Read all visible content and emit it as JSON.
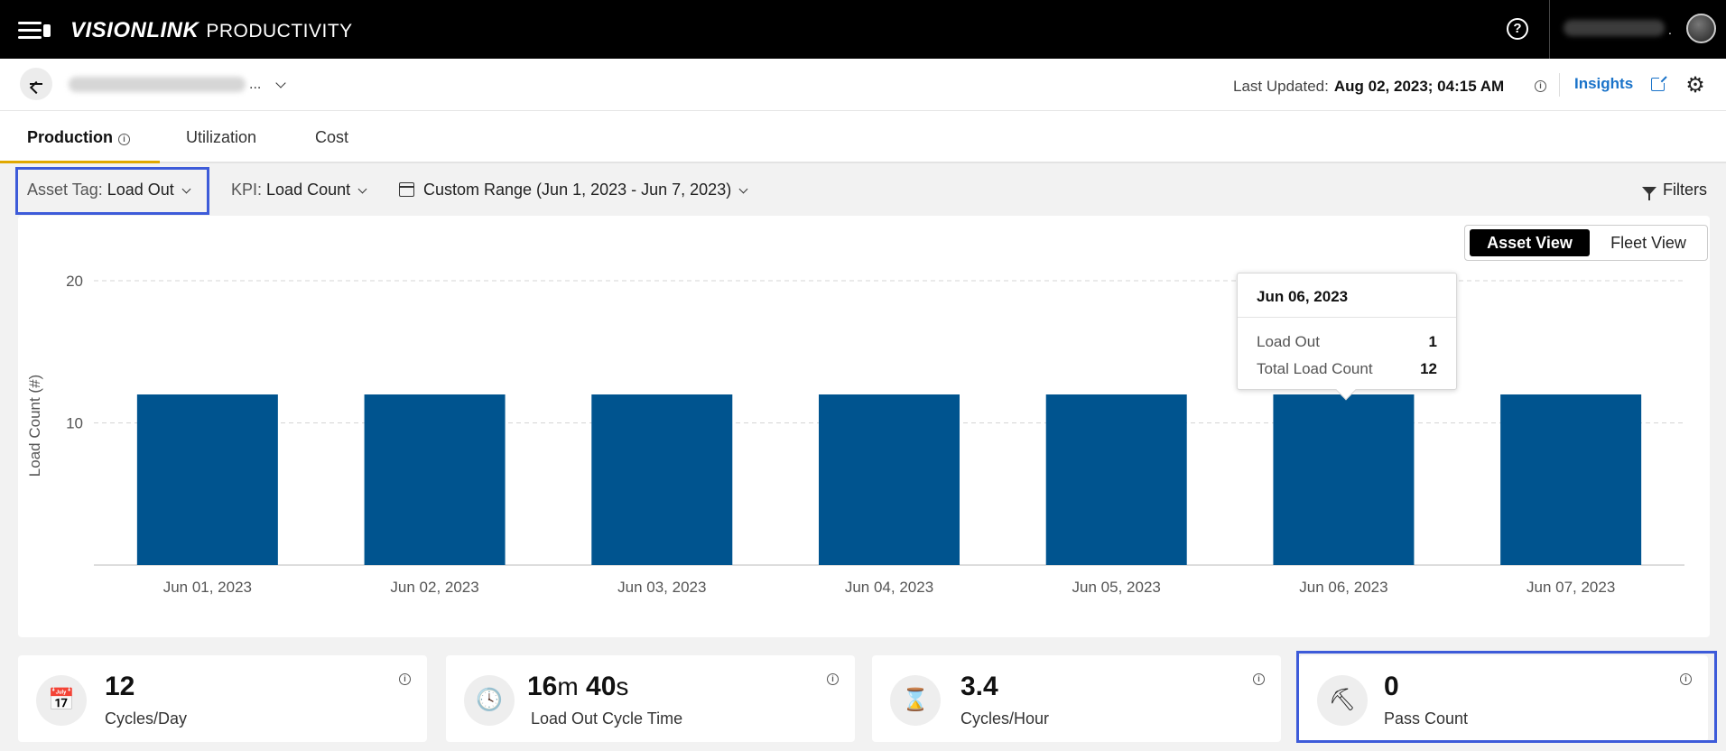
{
  "app": {
    "brand_main": "VISIONLINK",
    "brand_sub": "PRODUCTIVITY",
    "help_icon": "question-circle-icon"
  },
  "header": {
    "last_updated_label": "Last Updated:",
    "last_updated_value": "Aug 02, 2023; 04:15 AM",
    "insights_label": "Insights",
    "asset_name_suffix": "..."
  },
  "tabs": [
    {
      "label": "Production",
      "active": true
    },
    {
      "label": "Utilization",
      "active": false
    },
    {
      "label": "Cost",
      "active": false
    }
  ],
  "filters": {
    "asset_tag_label": "Asset Tag:",
    "asset_tag_value": "Load Out",
    "kpi_label": "KPI:",
    "kpi_value": "Load Count",
    "date_range": "Custom Range (Jun 1, 2023 - Jun 7, 2023)",
    "filters_label": "Filters"
  },
  "view_toggle": {
    "asset_view": "Asset View",
    "fleet_view": "Fleet View",
    "selected": "Asset View"
  },
  "chart_data": {
    "type": "bar",
    "ylabel": "Load Count (#)",
    "categories": [
      "Jun 01, 2023",
      "Jun 02, 2023",
      "Jun 03, 2023",
      "Jun 04, 2023",
      "Jun 05, 2023",
      "Jun 06, 2023",
      "Jun 07, 2023"
    ],
    "values": [
      12,
      12,
      12,
      12,
      12,
      12,
      12
    ],
    "ylim": [
      0,
      20
    ],
    "yticks": [
      10,
      20
    ],
    "grid": true,
    "bar_color": "#00548f"
  },
  "tooltip": {
    "title": "Jun 06, 2023",
    "rows": [
      {
        "label": "Load Out",
        "value": "1"
      },
      {
        "label": "Total Load Count",
        "value": "12"
      }
    ]
  },
  "kpis": [
    {
      "value": "12",
      "label": "Cycles/Day",
      "icon": "calendar-cycle-icon"
    },
    {
      "value_min": "16",
      "unit_min": "m",
      "value_sec": "40",
      "unit_sec": "s",
      "label": "Load Out Cycle Time",
      "icon": "clock-cycle-icon"
    },
    {
      "value": "3.4",
      "label": "Cycles/Hour",
      "icon": "hourglass-cycle-icon"
    },
    {
      "value": "0",
      "label": "Pass Count",
      "icon": "excavator-bucket-icon"
    }
  ],
  "colors": {
    "accent": "#e0a800",
    "link": "#1a73c9",
    "highlight": "#3d5bd9",
    "bar": "#00548f"
  }
}
